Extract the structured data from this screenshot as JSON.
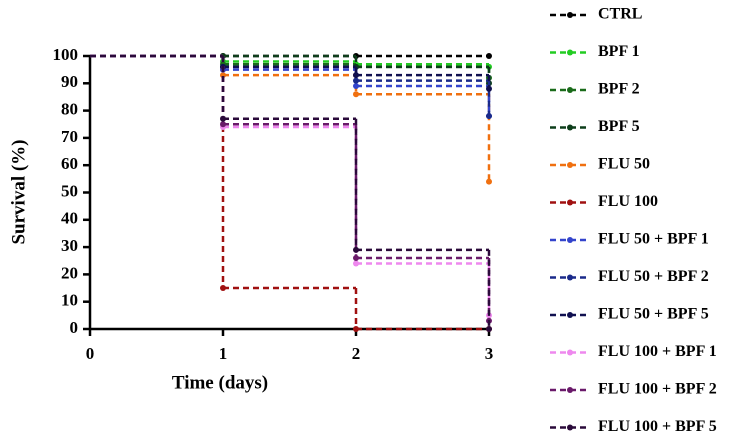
{
  "chart_data": {
    "type": "step",
    "xlabel": "Time (days)",
    "ylabel": "Survival  (%)",
    "x": [
      0,
      1,
      2,
      3
    ],
    "xlim": [
      0,
      3
    ],
    "xticks": [
      0,
      1,
      2,
      3
    ],
    "ylim": [
      0,
      100
    ],
    "yticks": [
      0,
      10,
      20,
      30,
      40,
      50,
      60,
      70,
      80,
      90,
      100
    ],
    "series": [
      {
        "name": "CTRL",
        "color": "#000000",
        "values": [
          100,
          100,
          100,
          100
        ]
      },
      {
        "name": "BPF 1",
        "color": "#22cc22",
        "values": [
          100,
          98,
          97,
          96
        ]
      },
      {
        "name": "BPF 2",
        "color": "#1a6b1a",
        "values": [
          100,
          97,
          96,
          92
        ]
      },
      {
        "name": "BPF 5",
        "color": "#0d3d1a",
        "values": [
          100,
          100,
          96,
          90
        ]
      },
      {
        "name": "FLU 50",
        "color": "#f07010",
        "values": [
          100,
          93,
          86,
          54
        ]
      },
      {
        "name": "FLU 100",
        "color": "#a01010",
        "values": [
          100,
          15,
          0,
          0
        ]
      },
      {
        "name": "FLU 50 + BPF 1",
        "color": "#3344cc",
        "values": [
          100,
          95,
          89,
          78
        ]
      },
      {
        "name": "FLU 50 + BPF 2",
        "color": "#1a2a8a",
        "values": [
          100,
          96,
          91,
          78
        ]
      },
      {
        "name": "FLU 50 + BPF 5",
        "color": "#101050",
        "values": [
          100,
          96,
          93,
          88
        ]
      },
      {
        "name": "FLU 100 + BPF 1",
        "color": "#ee88ee",
        "values": [
          100,
          74,
          24,
          5
        ]
      },
      {
        "name": "FLU 100 + BPF 2",
        "color": "#6a1a6a",
        "values": [
          100,
          75,
          26,
          3
        ]
      },
      {
        "name": "FLU 100 + BPF 5",
        "color": "#2a0a3a",
        "values": [
          100,
          77,
          29,
          0
        ]
      }
    ]
  }
}
